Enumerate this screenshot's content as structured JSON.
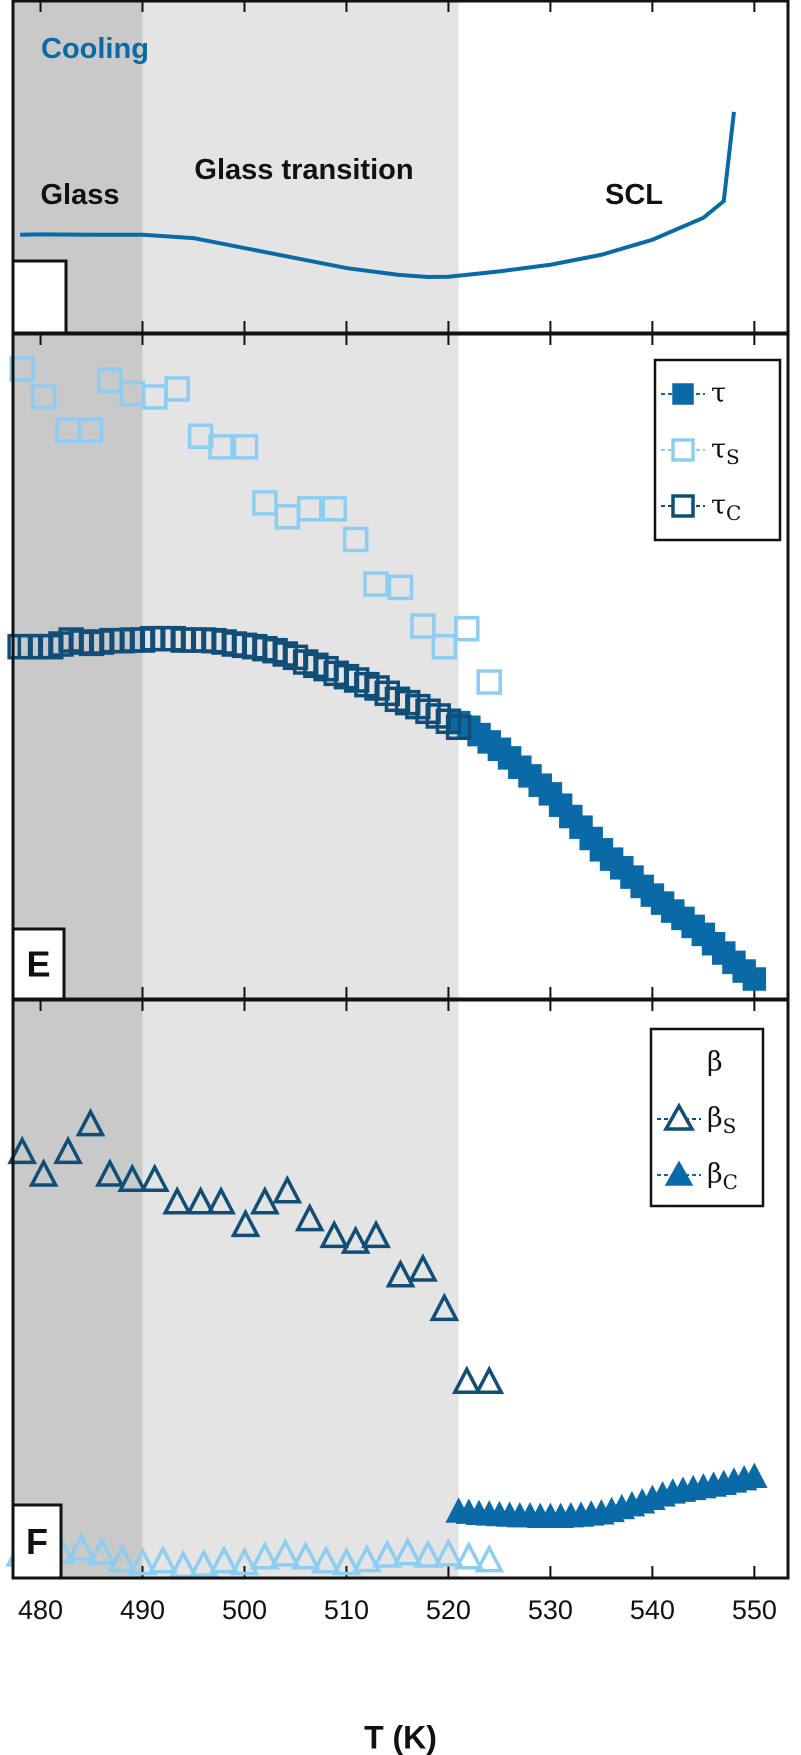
{
  "chart_data": [
    {
      "type": "line",
      "xlim": [
        477.3,
        553.3
      ],
      "ylim": [
        0,
        100
      ],
      "xticks": [
        480,
        490,
        500,
        510,
        520,
        530,
        540,
        550
      ],
      "shading_boundaries": [
        490,
        521
      ],
      "shading_colors": [
        "#c9c9c9",
        "#e4e4e4"
      ],
      "annotations": [
        "Cooling",
        "Glass",
        "Glass transition",
        "SCL"
      ],
      "series": [
        {
          "color": "#0a6aa8",
          "x": [
            478,
            480,
            485,
            490,
            495,
            500,
            505,
            510,
            515,
            518,
            520,
            525,
            530,
            535,
            540,
            545,
            547,
            548
          ],
          "values": [
            29.5,
            29.6,
            29.5,
            29.5,
            28.5,
            25.5,
            22.5,
            19.5,
            17.5,
            16.8,
            16.9,
            18.5,
            20.5,
            23.5,
            28,
            34.6,
            39.6,
            66.4
          ]
        }
      ]
    },
    {
      "type": "scatter",
      "panel_label": "E",
      "xlim": [
        477.3,
        553.3
      ],
      "ylim": [
        0,
        100
      ],
      "xticks": [
        480,
        490,
        500,
        510,
        520,
        530,
        540,
        550
      ],
      "shading_boundaries": [
        490,
        521
      ],
      "shading_colors": [
        "#c9c9c9",
        "#e4e4e4"
      ],
      "series": [
        {
          "name": "τ",
          "color": "#0a6aa8",
          "marker": "square",
          "x": [
            521,
            522,
            523,
            524,
            525,
            526,
            527,
            528,
            529,
            530,
            531,
            532,
            533,
            534,
            535,
            536,
            537,
            538,
            539,
            540,
            541,
            542,
            543,
            544,
            545,
            546,
            547,
            548,
            549,
            550
          ],
          "values": [
            41.5,
            40.8,
            39.7,
            38.6,
            37.5,
            36.2,
            34.8,
            33.5,
            32.1,
            30.8,
            29.1,
            27.4,
            25.8,
            24.1,
            22.4,
            21.0,
            19.7,
            18.3,
            16.9,
            15.6,
            14.4,
            13.2,
            12.1,
            10.9,
            9.7,
            8.3,
            6.9,
            5.5,
            4.2,
            3.0
          ]
        },
        {
          "name": "τS",
          "color": "#8dcdf2",
          "marker": "square-open",
          "x": [
            478.2,
            480.3,
            482.7,
            484.9,
            486.8,
            489.0,
            491.2,
            493.4,
            495.7,
            497.7,
            500.1,
            502.0,
            504.2,
            506.4,
            508.8,
            510.9,
            512.9,
            515.3,
            517.5,
            519.6,
            521.8,
            524.0
          ],
          "values": [
            94.6,
            90.4,
            85.4,
            85.4,
            92.9,
            90.9,
            90.4,
            91.6,
            84.5,
            82.9,
            82.9,
            74.5,
            72.4,
            73.6,
            73.6,
            69.0,
            62.3,
            61.8,
            56.0,
            52.9,
            55.6,
            47.6
          ]
        },
        {
          "name": "τC",
          "color": "#104e78",
          "marker": "square-open",
          "x": [
            478,
            479,
            480,
            481,
            482,
            483,
            484,
            485,
            486,
            487,
            488,
            489,
            490,
            491,
            492,
            493,
            494,
            495,
            496,
            497,
            498,
            499,
            500,
            501,
            502,
            503,
            504,
            505,
            506,
            507,
            508,
            509,
            510,
            511,
            512,
            513,
            514,
            515,
            516,
            517,
            518,
            519,
            520,
            521
          ],
          "values": [
            52.9,
            52.9,
            52.9,
            52.9,
            53.3,
            53.9,
            53.6,
            53.4,
            53.6,
            53.8,
            53.8,
            53.9,
            53.9,
            54.1,
            54.1,
            54.1,
            53.9,
            53.9,
            53.9,
            53.8,
            53.6,
            53.3,
            53.1,
            52.9,
            52.6,
            52.3,
            51.8,
            51.3,
            50.6,
            50.1,
            49.6,
            48.9,
            48.4,
            47.9,
            47.2,
            46.7,
            45.9,
            45.0,
            44.5,
            43.9,
            43.2,
            42.5,
            41.7,
            40.8
          ]
        }
      ]
    },
    {
      "type": "scatter",
      "panel_label": "F",
      "xlim": [
        477.3,
        553.3
      ],
      "ylim": [
        0,
        100
      ],
      "xticks": [
        480,
        490,
        500,
        510,
        520,
        530,
        540,
        550
      ],
      "x_label": "T (K)",
      "shading_boundaries": [
        490,
        521
      ],
      "shading_colors": [
        "#c9c9c9",
        "#e4e4e4"
      ],
      "series": [
        {
          "name": "β",
          "color": "#8dcdf2",
          "marker": "triangle-open",
          "legend_marker": false,
          "x": [
            478,
            480,
            482,
            484,
            486,
            488,
            490,
            492,
            494,
            496,
            498,
            500,
            502,
            504,
            506,
            508,
            510,
            512,
            514,
            516,
            518,
            520,
            522,
            524
          ],
          "values": [
            4.0,
            3.5,
            4.5,
            5.0,
            4.3,
            3.0,
            2.5,
            2.8,
            2.0,
            2.2,
            2.8,
            2.5,
            3.5,
            4.0,
            3.5,
            2.8,
            2.5,
            3.0,
            3.8,
            4.2,
            3.8,
            4.0,
            3.5,
            3.0
          ]
        },
        {
          "name": "βS",
          "color": "#104e78",
          "marker": "triangle-open",
          "x": [
            478.2,
            480.3,
            482.7,
            484.9,
            486.8,
            489.0,
            491.2,
            493.4,
            495.7,
            497.7,
            500.1,
            502.0,
            504.2,
            506.4,
            508.8,
            510.9,
            512.9,
            515.3,
            517.5,
            519.6,
            521.8,
            524.0
          ],
          "values": [
            73.5,
            69.6,
            73.5,
            78.3,
            69.6,
            68.7,
            68.7,
            64.8,
            64.8,
            64.8,
            60.9,
            64.8,
            66.7,
            61.9,
            59.0,
            58.0,
            59.0,
            52.2,
            53.2,
            46.4,
            33.8,
            33.8
          ]
        },
        {
          "name": "βC",
          "color": "#0a6aa8",
          "marker": "triangle",
          "x": [
            521,
            522,
            523,
            524,
            525,
            526,
            527,
            528,
            529,
            530,
            531,
            532,
            533,
            534,
            535,
            536,
            537,
            538,
            539,
            540,
            541,
            542,
            543,
            544,
            545,
            546,
            547,
            548,
            549,
            550
          ],
          "values": [
            11.4,
            11.2,
            11.0,
            10.9,
            10.8,
            10.7,
            10.6,
            10.6,
            10.5,
            10.5,
            10.5,
            10.6,
            10.7,
            10.9,
            11.1,
            11.5,
            12.0,
            12.5,
            13.0,
            13.6,
            14.2,
            14.7,
            15.0,
            15.3,
            15.6,
            15.9,
            16.2,
            16.6,
            17.0,
            17.4
          ]
        }
      ]
    }
  ]
}
